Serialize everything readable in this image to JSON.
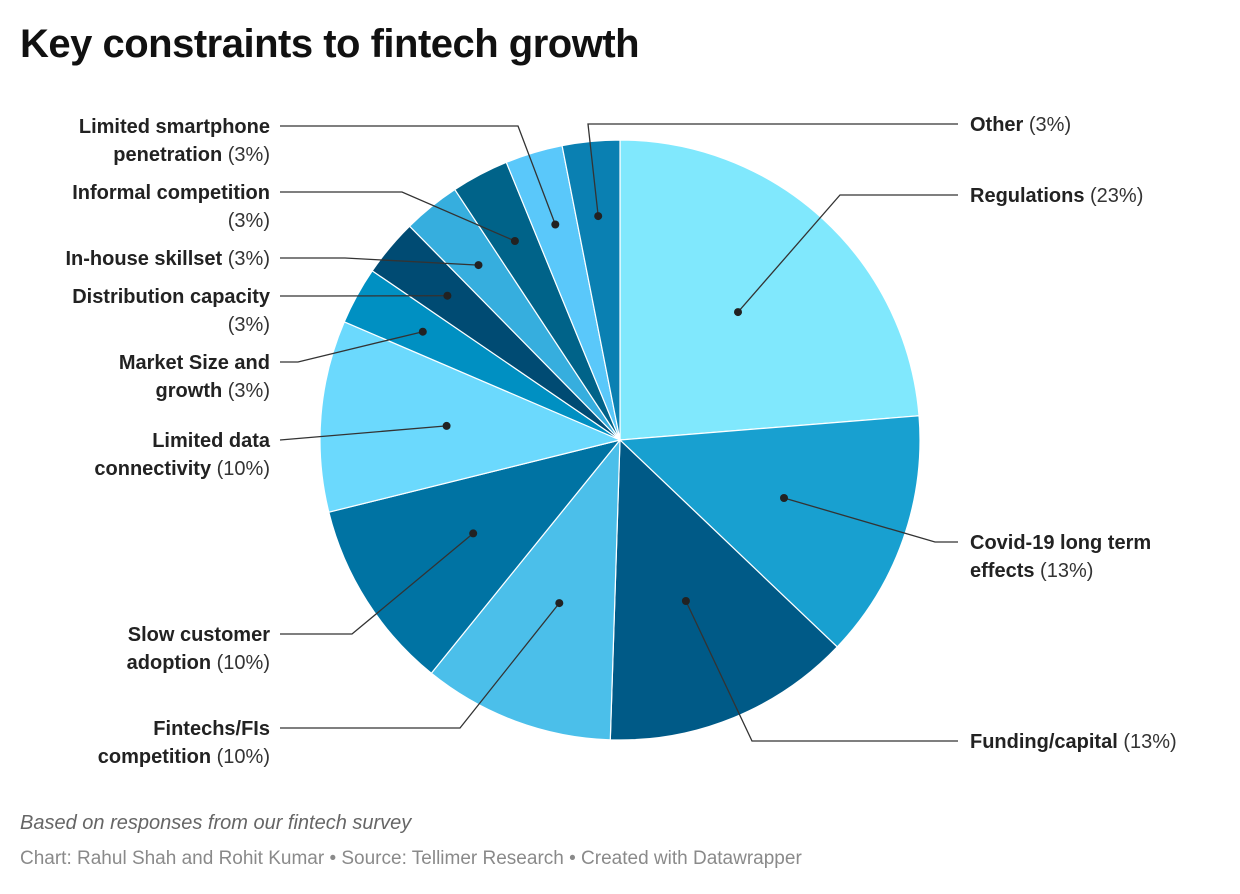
{
  "chart_data": {
    "type": "pie",
    "title": "Key constraints to fintech growth",
    "notes": "Based on responses from our fintech survey",
    "byline": "Chart: Rahul Shah and Rohit Kumar • Source: Tellimer Research • Created with Datawrapper",
    "slices": [
      {
        "name": "Regulations",
        "lines": [
          "Regulations"
        ],
        "value": 23,
        "pct_label": "(23%)",
        "color": "#80e8fd",
        "side": "right"
      },
      {
        "name": "Covid-19 long term effects",
        "lines": [
          "Covid-19 long term",
          "effects"
        ],
        "value": 13,
        "pct_label": "(13%)",
        "color": "#18a0d0",
        "side": "right"
      },
      {
        "name": "Funding/capital",
        "lines": [
          "Funding/capital"
        ],
        "value": 13,
        "pct_label": "(13%)",
        "color": "#005a87",
        "side": "right"
      },
      {
        "name": "Fintechs/FIs competition",
        "lines": [
          "Fintechs/FIs",
          "competition"
        ],
        "value": 10,
        "pct_label": "(10%)",
        "color": "#4bbfea",
        "side": "left"
      },
      {
        "name": "Slow customer adoption",
        "lines": [
          "Slow customer",
          "adoption"
        ],
        "value": 10,
        "pct_label": "(10%)",
        "color": "#0073a3",
        "side": "left"
      },
      {
        "name": "Limited data connectivity",
        "lines": [
          "Limited data",
          "connectivity"
        ],
        "value": 10,
        "pct_label": "(10%)",
        "color": "#6bd9fd",
        "side": "left"
      },
      {
        "name": "Market Size and growth",
        "lines": [
          "Market Size and",
          "growth"
        ],
        "value": 3,
        "pct_label": "(3%)",
        "color": "#0090c2",
        "side": "left"
      },
      {
        "name": "Distribution capacity",
        "lines": [
          "Distribution capacity",
          ""
        ],
        "value": 3,
        "pct_label": "(3%)",
        "color": "#004b73",
        "side": "left"
      },
      {
        "name": "In-house skillset",
        "lines": [
          "In-house skillset"
        ],
        "value": 3,
        "pct_label": "(3%)",
        "color": "#36aede",
        "side": "left"
      },
      {
        "name": "Informal competition",
        "lines": [
          "Informal competition",
          ""
        ],
        "value": 3,
        "pct_label": "(3%)",
        "color": "#006389",
        "side": "left"
      },
      {
        "name": "Limited smartphone penetration",
        "lines": [
          "Limited smartphone",
          "penetration"
        ],
        "value": 3,
        "pct_label": "(3%)",
        "color": "#5ac8fa",
        "side": "left"
      },
      {
        "name": "Other",
        "lines": [
          "Other"
        ],
        "value": 3,
        "pct_label": "(3%)",
        "color": "#0a80b2",
        "side": "right"
      }
    ]
  }
}
